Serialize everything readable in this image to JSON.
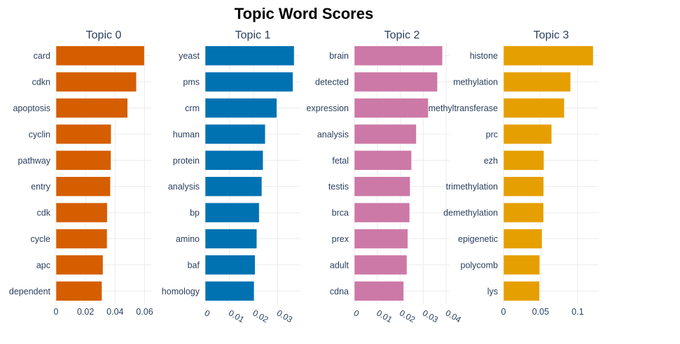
{
  "title": "Topic Word Scores",
  "chart_data": [
    {
      "type": "bar",
      "orientation": "horizontal",
      "title": "Topic 0",
      "color": "#D55E00",
      "categories": [
        "card",
        "cdkn",
        "apoptosis",
        "cyclin",
        "pathway",
        "entry",
        "cdk",
        "cycle",
        "apc",
        "dependent"
      ],
      "values": [
        0.0598,
        0.0544,
        0.0485,
        0.0373,
        0.0372,
        0.0368,
        0.0347,
        0.0346,
        0.0318,
        0.0311
      ],
      "xlim": [
        0,
        0.0645
      ],
      "ticks": [
        0,
        0.02,
        0.04,
        0.06
      ],
      "tick_labels": [
        "0",
        "0.02",
        "0.04",
        "0.06"
      ],
      "tick_angle": 0,
      "grid": true
    },
    {
      "type": "bar",
      "orientation": "horizontal",
      "title": "Topic 1",
      "color": "#0072B2",
      "categories": [
        "yeast",
        "pms",
        "crm",
        "human",
        "protein",
        "analysis",
        "bp",
        "amino",
        "baf",
        "homology"
      ],
      "values": [
        0.0369,
        0.0364,
        0.0297,
        0.0249,
        0.024,
        0.0235,
        0.0224,
        0.0214,
        0.0207,
        0.0203
      ],
      "xlim": [
        0,
        0.0395
      ],
      "ticks": [
        0,
        0.01,
        0.02,
        0.03
      ],
      "tick_labels": [
        "0",
        "0.01",
        "0.02",
        "0.03"
      ],
      "tick_angle": 30,
      "grid": true
    },
    {
      "type": "bar",
      "orientation": "horizontal",
      "title": "Topic 2",
      "color": "#CC79A7",
      "categories": [
        "brain",
        "detected",
        "expression",
        "analysis",
        "fetal",
        "testis",
        "brca",
        "prex",
        "adult",
        "cdna"
      ],
      "values": [
        0.0384,
        0.0362,
        0.0322,
        0.027,
        0.0249,
        0.0243,
        0.0241,
        0.0233,
        0.0229,
        0.0215
      ],
      "xlim": [
        0,
        0.0415
      ],
      "ticks": [
        0,
        0.01,
        0.02,
        0.03,
        0.04
      ],
      "tick_labels": [
        "0",
        "0.01",
        "0.02",
        "0.03",
        "0.04"
      ],
      "tick_angle": 30,
      "grid": true
    },
    {
      "type": "bar",
      "orientation": "horizontal",
      "title": "Topic 3",
      "color": "#E69F00",
      "categories": [
        "histone",
        "methylation",
        "methyltransferase",
        "prc",
        "ezh",
        "trimethylation",
        "demethylation",
        "epigenetic",
        "polycomb",
        "lys"
      ],
      "values": [
        0.121,
        0.0905,
        0.082,
        0.065,
        0.0545,
        0.0542,
        0.054,
        0.052,
        0.0488,
        0.0486
      ],
      "xlim": [
        0,
        0.1285
      ],
      "ticks": [
        0,
        0.05,
        0.1
      ],
      "tick_labels": [
        "0",
        "0.05",
        "0.1"
      ],
      "tick_angle": 0,
      "grid": true
    }
  ]
}
